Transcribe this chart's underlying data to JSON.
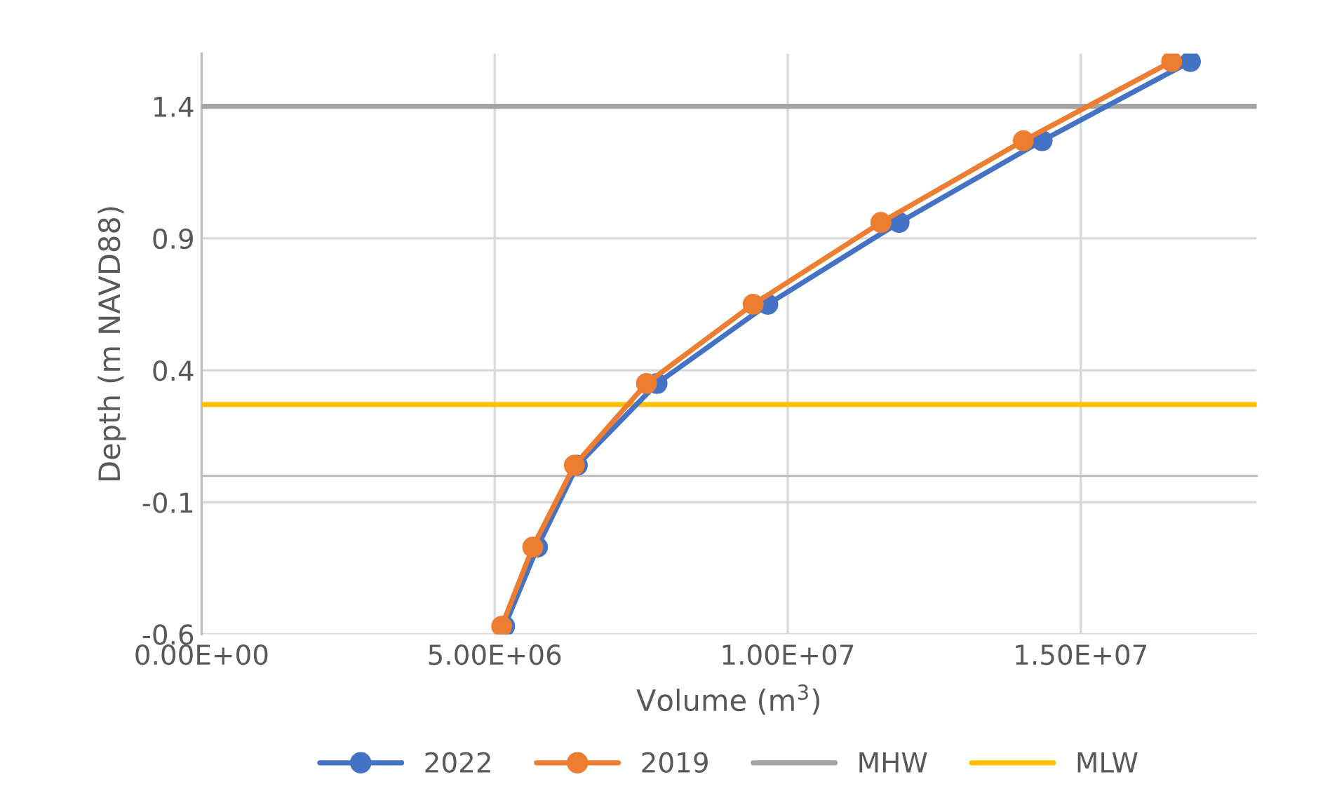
{
  "chart_data": {
    "type": "line",
    "xlabel": "Volume (m$^{3}$)",
    "ylabel": "Depth (m NAVD88)",
    "xlim": [
      0,
      18000000
    ],
    "ylim": [
      -0.6,
      1.6
    ],
    "xticks": [
      {
        "value": 0,
        "label": "0.00E+00"
      },
      {
        "value": 5000000,
        "label": "5.00E+06"
      },
      {
        "value": 10000000,
        "label": "1.00E+07"
      },
      {
        "value": 15000000,
        "label": "1.50E+07"
      }
    ],
    "yticks": [
      -0.6,
      -0.1,
      0.4,
      0.9,
      1.4
    ],
    "grid": true,
    "legend": "bottom",
    "marker": "circle",
    "line_style": "solid",
    "series": [
      {
        "name": "2022",
        "color": "#4472c4",
        "x": [
          5170000,
          5730000,
          6410000,
          7770000,
          9660000,
          11900000,
          14340000,
          16870000
        ],
        "values": [
          -0.57,
          -0.27,
          0.04,
          0.35,
          0.65,
          0.96,
          1.27,
          1.57
        ]
      },
      {
        "name": "2019",
        "color": "#ed7d31",
        "x": [
          5120000,
          5650000,
          6360000,
          7590000,
          9410000,
          11590000,
          14020000,
          16550000
        ],
        "values": [
          -0.57,
          -0.27,
          0.04,
          0.35,
          0.65,
          0.96,
          1.27,
          1.57
        ]
      }
    ],
    "ref_lines": [
      {
        "axis": "y",
        "value": 1.4,
        "label": "MHW",
        "color": "#a5a5a5"
      },
      {
        "axis": "y",
        "value": 0.27,
        "label": "MLW",
        "color": "#ffc000"
      }
    ]
  }
}
